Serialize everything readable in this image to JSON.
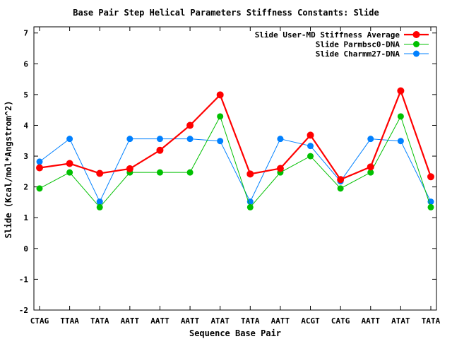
{
  "chart_data": {
    "type": "line",
    "title": "Base Pair Step Helical Parameters Stiffness Constants: Slide",
    "xlabel": "Sequence Base Pair",
    "ylabel": "Slide (Kcal/mol*Angstrom^2)",
    "ylim": [
      -2,
      7.2
    ],
    "yticks": [
      -2,
      -1,
      0,
      1,
      2,
      3,
      4,
      5,
      6,
      7
    ],
    "categories": [
      "CTAG",
      "TTAA",
      "TATA",
      "AATT",
      "AATT",
      "AATT",
      "ATAT",
      "TATA",
      "AATT",
      "ACGT",
      "CATG",
      "AATT",
      "ATAT",
      "TATA"
    ],
    "grid": false,
    "legend_position": "top-right",
    "series": [
      {
        "name": "Slide User-MD Stiffness Average",
        "color": "#ff0000",
        "values": [
          2.62,
          2.76,
          2.44,
          2.59,
          3.19,
          4.0,
          4.99,
          2.42,
          2.6,
          3.68,
          2.24,
          2.65,
          5.12,
          2.33
        ]
      },
      {
        "name": "Slide Parmbsc0-DNA",
        "color": "#00c000",
        "values": [
          1.95,
          2.47,
          1.34,
          2.47,
          2.47,
          2.47,
          4.29,
          1.34,
          2.47,
          3.0,
          1.95,
          2.47,
          4.29,
          1.34
        ]
      },
      {
        "name": "Slide Charmm27-DNA",
        "color": "#0080ff",
        "values": [
          2.82,
          3.56,
          1.52,
          3.56,
          3.56,
          3.56,
          3.49,
          1.52,
          3.56,
          3.33,
          2.18,
          3.56,
          3.49,
          1.52
        ]
      }
    ]
  }
}
